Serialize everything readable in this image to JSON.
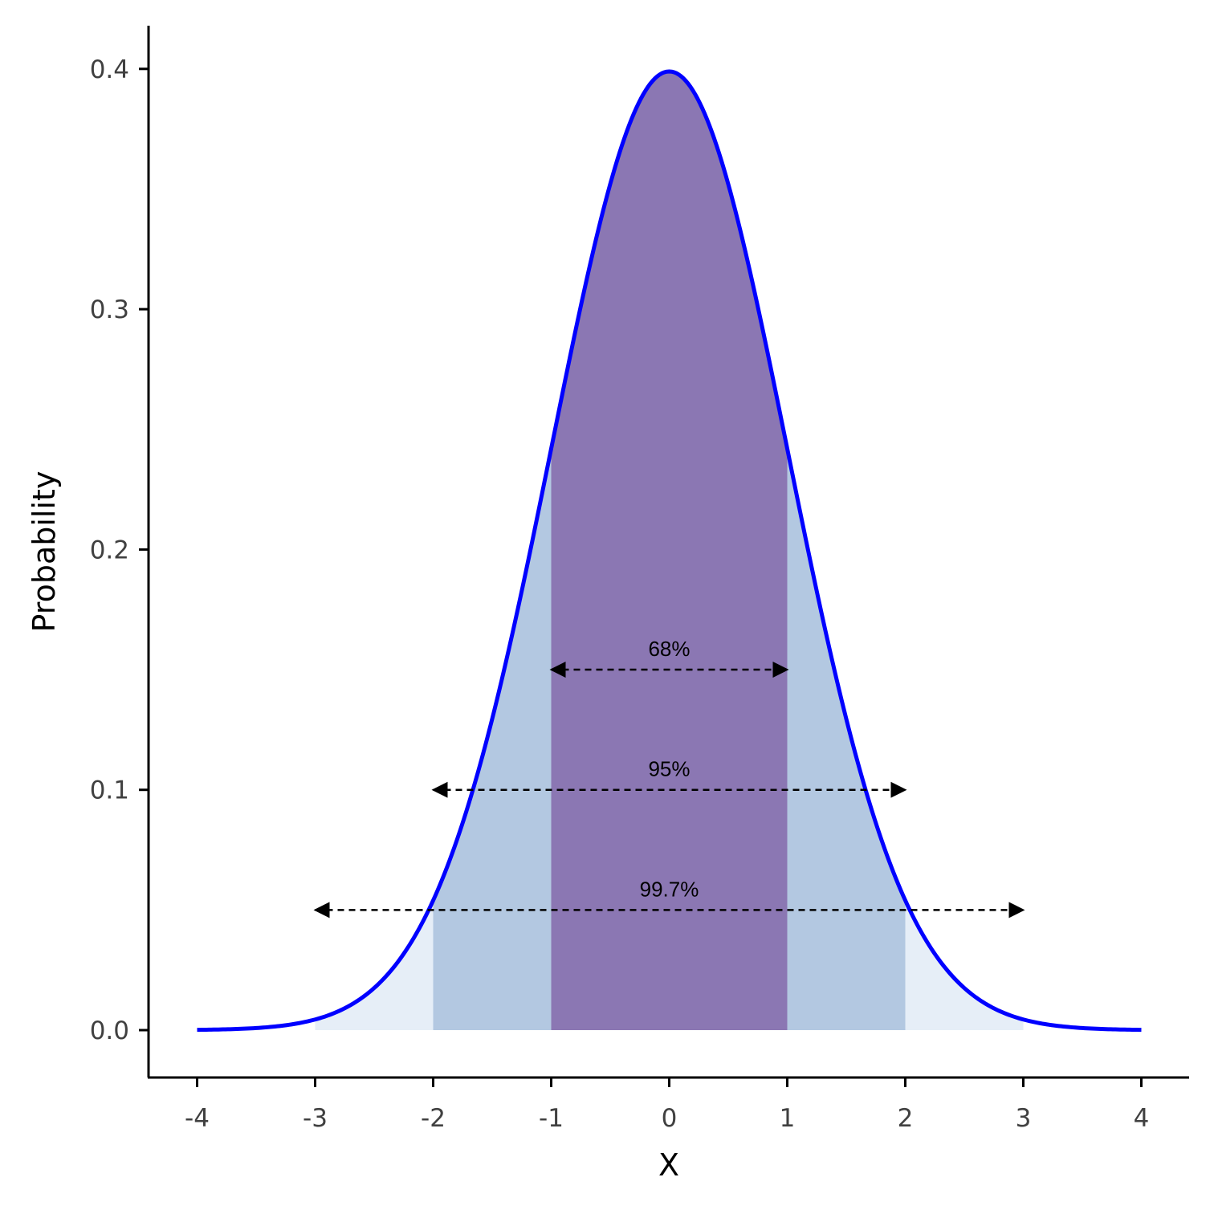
{
  "chart_data": {
    "type": "area",
    "xlabel": "X",
    "ylabel": "Probability",
    "xlim": [
      -4,
      4
    ],
    "ylim": [
      0,
      0.4
    ],
    "grid": false,
    "x_ticks": [
      -4,
      -3,
      -2,
      -1,
      0,
      1,
      2,
      3,
      4
    ],
    "x_tick_labels": [
      "-4",
      "-3",
      "-2",
      "-1",
      "0",
      "1",
      "2",
      "3",
      "4"
    ],
    "y_ticks": [
      0,
      0.1,
      0.2,
      0.3,
      0.4
    ],
    "y_tick_labels": [
      "0.0",
      "0.1",
      "0.2",
      "0.3",
      "0.4"
    ],
    "curve": {
      "x": [
        -4,
        -3.75,
        -3.5,
        -3.25,
        -3,
        -2.75,
        -2.5,
        -2.25,
        -2,
        -1.75,
        -1.5,
        -1.25,
        -1,
        -0.75,
        -0.5,
        -0.25,
        0,
        0.25,
        0.5,
        0.75,
        1,
        1.25,
        1.5,
        1.75,
        2,
        2.25,
        2.5,
        2.75,
        3,
        3.25,
        3.5,
        3.75,
        4
      ],
      "y": [
        0.0001,
        0.0004,
        0.0009,
        0.002,
        0.0044,
        0.0091,
        0.0175,
        0.0317,
        0.054,
        0.0863,
        0.1295,
        0.1826,
        0.242,
        0.3011,
        0.3521,
        0.3867,
        0.3989,
        0.3867,
        0.3521,
        0.3011,
        0.242,
        0.1826,
        0.1295,
        0.0863,
        0.054,
        0.0317,
        0.0175,
        0.0091,
        0.0044,
        0.002,
        0.0009,
        0.0004,
        0.0001
      ],
      "color": "#0000ff"
    },
    "bands": [
      {
        "range": [
          -3,
          3
        ],
        "color": "#e6eef7"
      },
      {
        "range": [
          -2,
          2
        ],
        "color": "#b3c8e1"
      },
      {
        "range": [
          -1,
          1
        ],
        "color": "#8b77b3"
      }
    ],
    "annotations": [
      {
        "label": "68%",
        "x_range": [
          -1,
          1
        ],
        "y": 0.15
      },
      {
        "label": "95%",
        "x_range": [
          -2,
          2
        ],
        "y": 0.1
      },
      {
        "label": "99.7%",
        "x_range": [
          -3,
          3
        ],
        "y": 0.05
      }
    ]
  }
}
